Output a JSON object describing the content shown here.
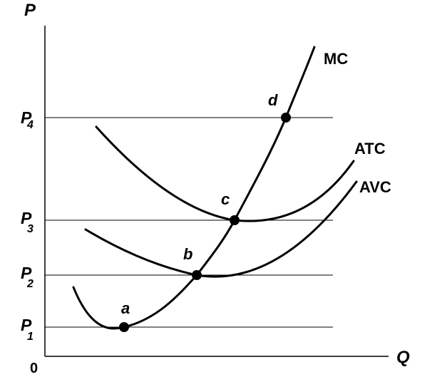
{
  "axes": {
    "y_label": "P",
    "x_label": "Q",
    "origin_label": "0"
  },
  "price_levels": [
    {
      "main": "P",
      "sub": "1"
    },
    {
      "main": "P",
      "sub": "2"
    },
    {
      "main": "P",
      "sub": "3"
    },
    {
      "main": "P",
      "sub": "4"
    }
  ],
  "curves": {
    "mc_label": "MC",
    "atc_label": "ATC",
    "avc_label": "AVC"
  },
  "points": [
    "a",
    "b",
    "c",
    "d"
  ]
}
